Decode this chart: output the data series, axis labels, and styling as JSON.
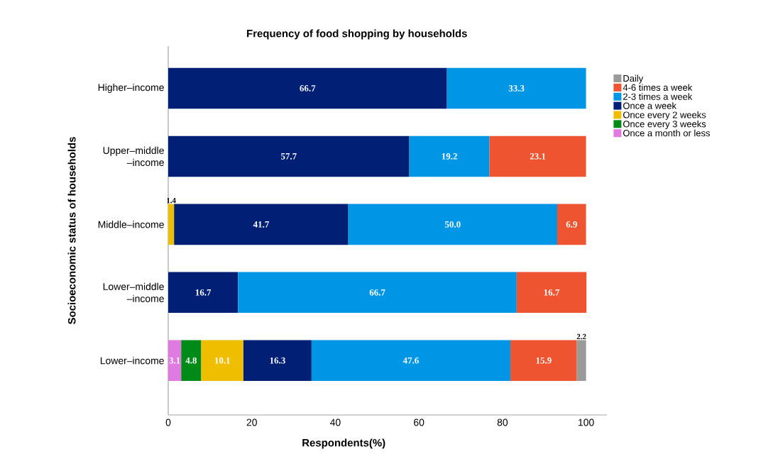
{
  "chart_data": {
    "type": "bar",
    "orientation": "horizontal",
    "stacked": true,
    "title": "Frequency of food shopping by households",
    "xlabel": "Respondents(%)",
    "ylabel": "Socioeconomic status of households",
    "categories": [
      "Higher–income",
      "Upper–middle –income",
      "Middle–income",
      "Lower–middle –income",
      "Lower–income"
    ],
    "series": [
      {
        "name": "Once a month or less",
        "color": "#e07ae0",
        "values": [
          null,
          null,
          null,
          null,
          3.1
        ],
        "value_labels": [
          null,
          null,
          null,
          null,
          "3.1"
        ]
      },
      {
        "name": "Once every 3 weeks",
        "color": "#008a18",
        "values": [
          null,
          null,
          null,
          null,
          4.8
        ],
        "value_labels": [
          null,
          null,
          null,
          null,
          "4.8"
        ]
      },
      {
        "name": "Once every 2 weeks",
        "color": "#f0be00",
        "values": [
          null,
          null,
          1.4,
          null,
          10.1
        ],
        "value_labels": [
          null,
          null,
          "1.4",
          null,
          "10.1"
        ]
      },
      {
        "name": "Once a week",
        "color": "#001f75",
        "values": [
          66.7,
          57.7,
          41.7,
          16.7,
          16.3
        ],
        "value_labels": [
          "66.7",
          "57.7",
          "41.7",
          "16.7",
          "16.3"
        ]
      },
      {
        "name": "2-3 times a week",
        "color": "#0096e6",
        "values": [
          33.3,
          19.2,
          50.0,
          66.7,
          47.6
        ],
        "value_labels": [
          "33.3",
          "19.2",
          "50.0",
          "66.7",
          "47.6"
        ]
      },
      {
        "name": "4-6 times a week",
        "color": "#ee5430",
        "values": [
          null,
          23.1,
          6.9,
          16.7,
          15.9
        ],
        "value_labels": [
          null,
          "23.1",
          "6.9",
          "16.7",
          "15.9"
        ]
      },
      {
        "name": "Daily",
        "color": "#9a9a9a",
        "values": [
          null,
          null,
          null,
          null,
          2.2
        ],
        "value_labels": [
          null,
          null,
          null,
          null,
          "2.2"
        ]
      }
    ],
    "xlim": [
      0,
      105
    ],
    "xticks": [
      0,
      20,
      40,
      60,
      80,
      100
    ],
    "legend": "right",
    "grid": false
  }
}
